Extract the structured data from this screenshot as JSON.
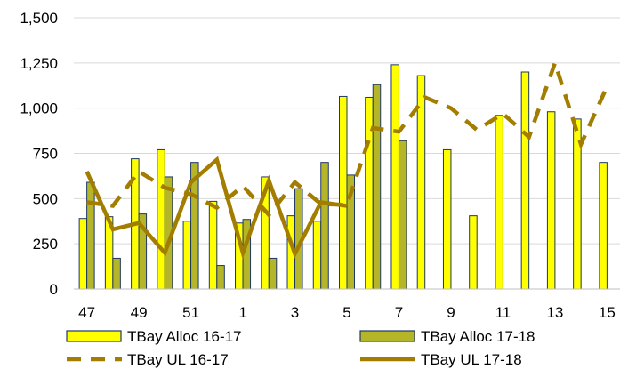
{
  "chart_data": {
    "type": "bar",
    "title": "",
    "xlabel": "",
    "ylabel": "",
    "categories": [
      "47",
      "48",
      "49",
      "50",
      "51",
      "52",
      "1",
      "2",
      "3",
      "4",
      "5",
      "6",
      "7",
      "8",
      "9",
      "10",
      "11",
      "12",
      "13",
      "14",
      "15"
    ],
    "x_tick_labels": [
      "47",
      "49",
      "51",
      "1",
      "3",
      "5",
      "7",
      "9",
      "11",
      "13",
      "15"
    ],
    "ylim": [
      0,
      1500
    ],
    "y_ticks": [
      0,
      250,
      500,
      750,
      1000,
      1250,
      1500
    ],
    "y_tick_labels": [
      "0",
      "250",
      "500",
      "750",
      "1,000",
      "1,250",
      "1,500"
    ],
    "grid": "horizontal",
    "legend_position": "bottom",
    "series": [
      {
        "name": "TBay Alloc 16-17",
        "kind": "bar",
        "color": "#ffff00",
        "values": [
          390,
          400,
          720,
          770,
          375,
          485,
          365,
          620,
          405,
          375,
          1065,
          1060,
          1240,
          1180,
          770,
          405,
          960,
          1200,
          980,
          940,
          700
        ]
      },
      {
        "name": "TBay Alloc 17-18",
        "kind": "bar",
        "color": "#b5b52a",
        "values": [
          590,
          170,
          415,
          620,
          700,
          130,
          385,
          170,
          555,
          700,
          630,
          1130,
          820,
          null,
          null,
          null,
          null,
          null,
          null,
          null,
          null
        ]
      },
      {
        "name": "TBay UL 16-17",
        "kind": "line",
        "style": "dashed",
        "color": "#a37d00",
        "values": [
          480,
          460,
          650,
          560,
          525,
          450,
          570,
          410,
          590,
          470,
          465,
          890,
          870,
          1060,
          1000,
          880,
          970,
          840,
          1250,
          800,
          1120
        ]
      },
      {
        "name": "TBay UL 17-18",
        "kind": "line",
        "style": "solid",
        "color": "#a37d00",
        "values": [
          650,
          330,
          365,
          200,
          590,
          715,
          200,
          600,
          195,
          480,
          460,
          null,
          null,
          null,
          null,
          null,
          null,
          null,
          null,
          null,
          null
        ]
      }
    ]
  }
}
